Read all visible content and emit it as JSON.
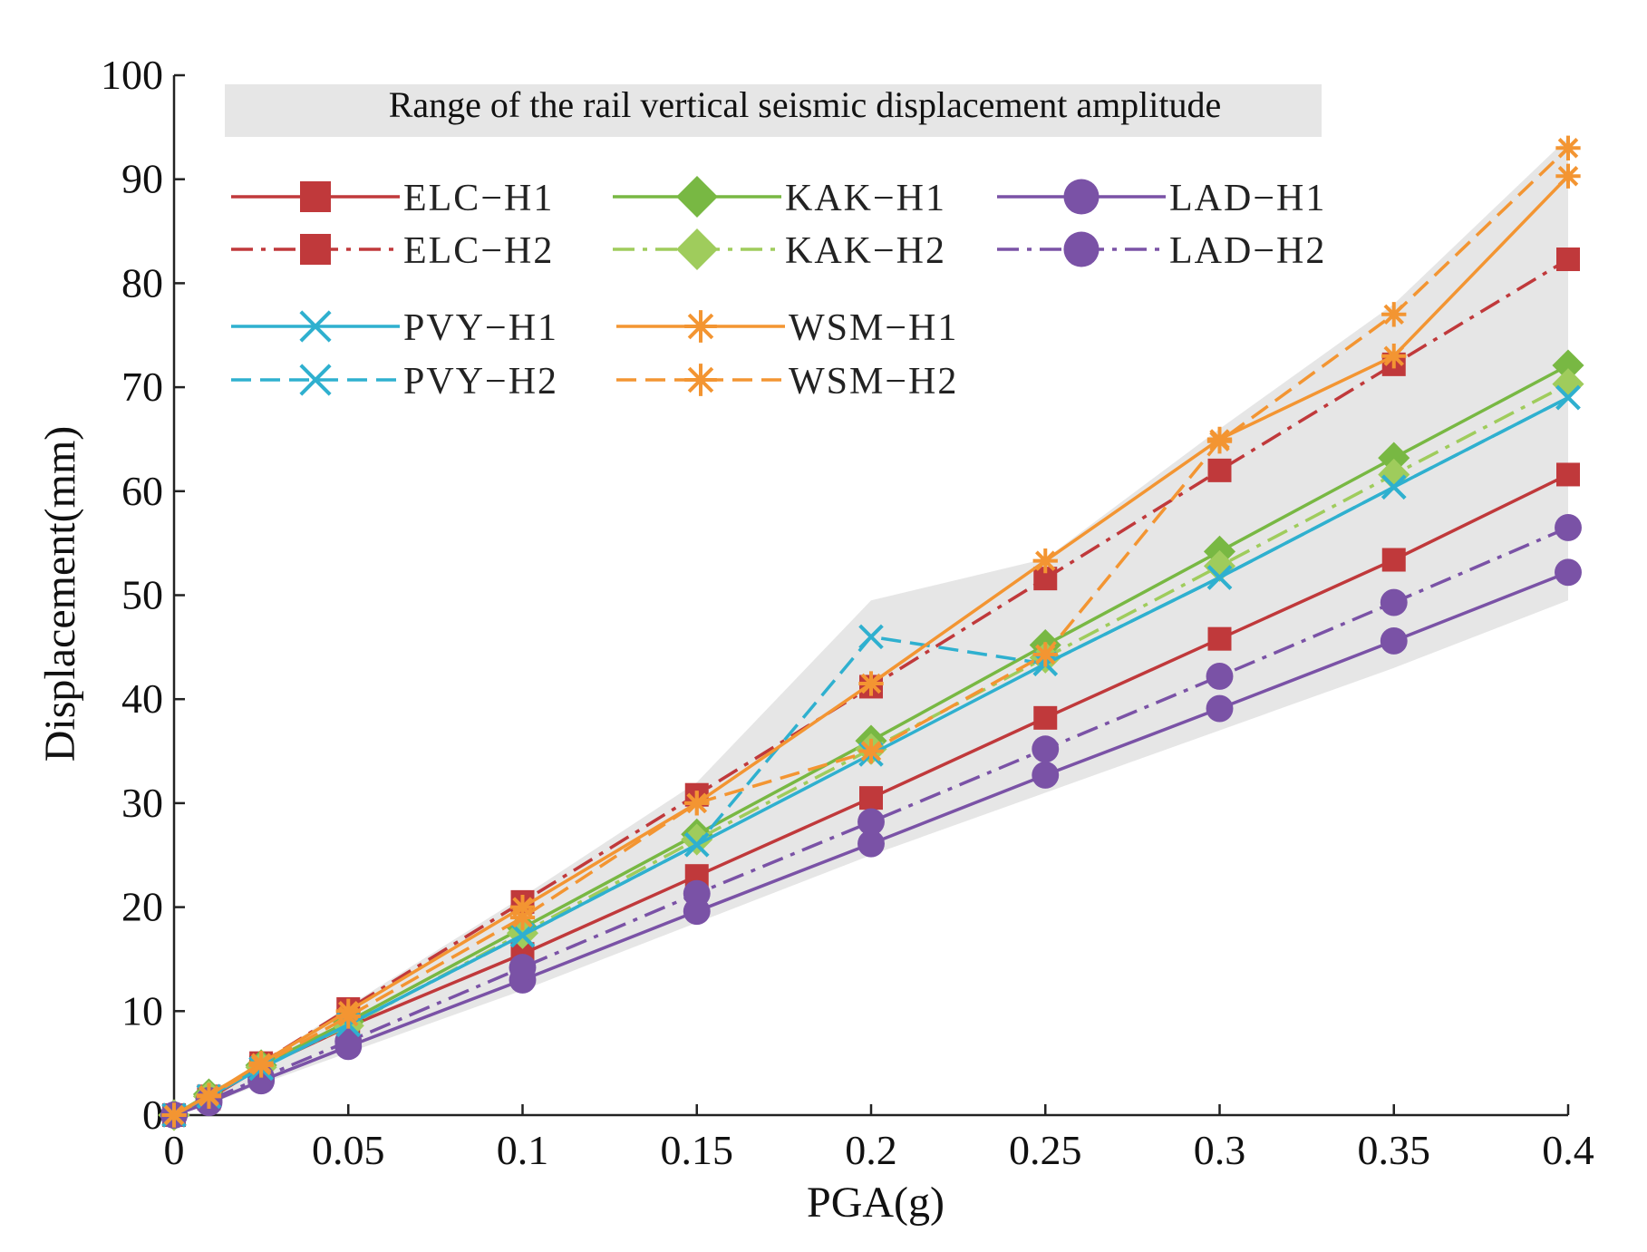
{
  "chart_data": {
    "type": "line",
    "title": "",
    "xlabel": "PGA(g)",
    "ylabel": "Displacement(mm)",
    "xlim": [
      0,
      0.4
    ],
    "ylim": [
      0,
      100
    ],
    "x": [
      0,
      0.01,
      0.025,
      0.05,
      0.1,
      0.15,
      0.2,
      0.25,
      0.3,
      0.35,
      0.4
    ],
    "xticks": [
      "0",
      "0.05",
      "0.1",
      "0.15",
      "0.2",
      "0.25",
      "0.3",
      "0.35",
      "0.4"
    ],
    "xtick_values": [
      0,
      0.05,
      0.1,
      0.15,
      0.2,
      0.25,
      0.3,
      0.35,
      0.4
    ],
    "yticks": [
      "0",
      "10",
      "20",
      "30",
      "40",
      "50",
      "60",
      "70",
      "80",
      "90",
      "100"
    ],
    "ytick_values": [
      0,
      10,
      20,
      30,
      40,
      50,
      60,
      70,
      80,
      90,
      100
    ],
    "band": {
      "label": "Range of the rail vertical seismic displacement amplitude",
      "color": "#e6e6e6",
      "upper": [
        0,
        2,
        5,
        10.5,
        21,
        32,
        49.5,
        53.5,
        66,
        78,
        94
      ],
      "lower": [
        0,
        1,
        3,
        6,
        12,
        18.5,
        25,
        31,
        37,
        43,
        49.5
      ]
    },
    "series": [
      {
        "name": "ELC−H1",
        "color": "#c0393b",
        "dash": "solid",
        "marker": "square",
        "values": [
          0,
          1.6,
          4.6,
          8.5,
          15.5,
          23,
          30.5,
          38.2,
          45.8,
          53.4,
          61.6
        ]
      },
      {
        "name": "ELC−H2",
        "color": "#c0393b",
        "dash": "dashdot",
        "marker": "square",
        "values": [
          0,
          1.8,
          5,
          10.2,
          20.5,
          30.8,
          41.2,
          51.6,
          62,
          72.2,
          82.3
        ]
      },
      {
        "name": "KAK−H1",
        "color": "#78b843",
        "dash": "solid",
        "marker": "diamond",
        "values": [
          0,
          2,
          4.8,
          9,
          18,
          27,
          36,
          45.2,
          54.2,
          63.2,
          72.1
        ]
      },
      {
        "name": "KAK−H2",
        "color": "#9fcc5c",
        "dash": "dashdot",
        "marker": "diamond",
        "values": [
          0,
          1.8,
          4.6,
          8.6,
          17.5,
          26.5,
          35.2,
          44,
          52.8,
          61.6,
          70.3
        ]
      },
      {
        "name": "LAD−H1",
        "color": "#7a52a6",
        "dash": "solid",
        "marker": "circle",
        "values": [
          0,
          1.2,
          3.3,
          6.6,
          13,
          19.6,
          26.1,
          32.7,
          39.1,
          45.6,
          52.2
        ]
      },
      {
        "name": "LAD−H2",
        "color": "#7a52a6",
        "dash": "dashdot",
        "marker": "circle",
        "values": [
          0,
          1.4,
          3.6,
          7.1,
          14.2,
          21.3,
          28.2,
          35.2,
          42.2,
          49.3,
          56.5
        ]
      },
      {
        "name": "PVY−H1",
        "color": "#2fb0cf",
        "dash": "solid",
        "marker": "x",
        "values": [
          0,
          1.8,
          4.5,
          8.7,
          17.3,
          26,
          34.7,
          43.4,
          51.7,
          60.4,
          69
        ]
      },
      {
        "name": "PVY−H2",
        "color": "#2fb0cf",
        "dash": "dashed",
        "marker": "x",
        "values": [
          0,
          1.8,
          4.5,
          8.7,
          17.3,
          26,
          46,
          43.4,
          51.7,
          60.4,
          69
        ]
      },
      {
        "name": "WSM−H1",
        "color": "#f39532",
        "dash": "solid",
        "marker": "asterisk",
        "values": [
          0,
          1.9,
          5,
          10,
          20,
          30,
          41.5,
          53.3,
          65,
          73,
          90.3
        ]
      },
      {
        "name": "WSM−H2",
        "color": "#f39532",
        "dash": "dashed",
        "marker": "asterisk",
        "values": [
          0,
          1.8,
          4.8,
          9.5,
          19,
          30,
          35,
          44.3,
          64.8,
          77,
          93
        ]
      }
    ],
    "legend_rows": [
      [
        "ELC−H1",
        "KAK−H1",
        "LAD−H1"
      ],
      [
        "ELC−H2",
        "KAK−H2",
        "LAD−H2"
      ],
      [
        "PVY−H1",
        "WSM−H1"
      ],
      [
        "PVY−H2",
        "WSM−H2"
      ]
    ]
  }
}
